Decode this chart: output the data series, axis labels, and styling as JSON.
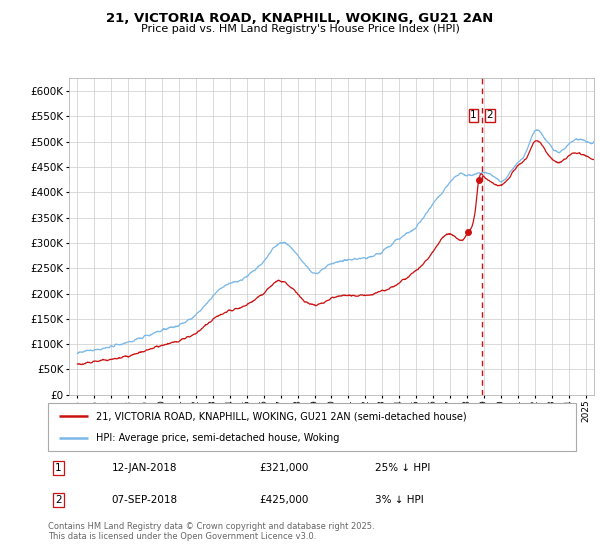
{
  "title": "21, VICTORIA ROAD, KNAPHILL, WOKING, GU21 2AN",
  "subtitle": "Price paid vs. HM Land Registry's House Price Index (HPI)",
  "yticks": [
    0,
    50000,
    100000,
    150000,
    200000,
    250000,
    300000,
    350000,
    400000,
    450000,
    500000,
    550000,
    600000
  ],
  "xlim_start": 1994.5,
  "xlim_end": 2025.5,
  "ylim": [
    0,
    625000
  ],
  "transaction1_date": 2018.04,
  "transaction1_price": 321000,
  "transaction2_date": 2018.69,
  "transaction2_price": 425000,
  "dashed_line_x": 2018.9,
  "legend_line1": "21, VICTORIA ROAD, KNAPHILL, WOKING, GU21 2AN (semi-detached house)",
  "legend_line2": "HPI: Average price, semi-detached house, Woking",
  "annotation1_num": "1",
  "annotation1_date": "12-JAN-2018",
  "annotation1_price": "£321,000",
  "annotation1_hpi": "25% ↓ HPI",
  "annotation2_num": "2",
  "annotation2_date": "07-SEP-2018",
  "annotation2_price": "£425,000",
  "annotation2_hpi": "3% ↓ HPI",
  "footer": "Contains HM Land Registry data © Crown copyright and database right 2025.\nThis data is licensed under the Open Government Licence v3.0.",
  "hpi_color": "#7ab8e8",
  "price_color": "#cc1111",
  "dashed_color": "#cc1111",
  "box_color": "#cc1111",
  "background_color": "#ffffff",
  "grid_color": "#cccccc"
}
